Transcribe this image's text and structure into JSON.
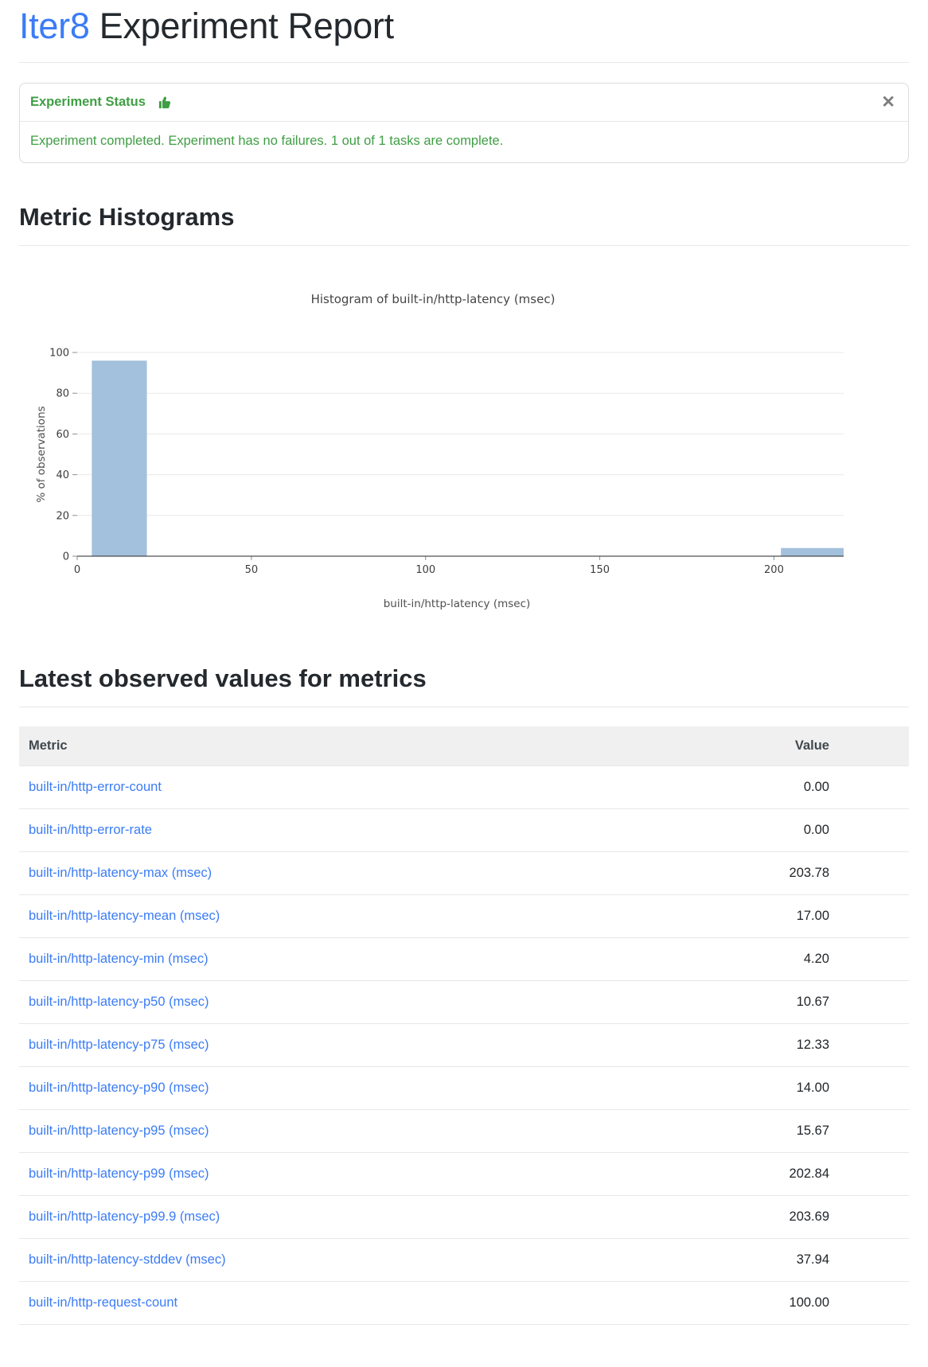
{
  "page": {
    "title_accent": "Iter8",
    "title_rest": " Experiment Report"
  },
  "colors": {
    "accent_blue": "#3b7cf6",
    "status_green": "#3f9e44",
    "bar_blue": "#a3c0dc",
    "table_header_bg": "#f0f0f1"
  },
  "status_card": {
    "header": "Experiment Status",
    "thumb_icon": "thumbs-up",
    "close_icon": "✕",
    "message": "Experiment completed. Experiment has no failures. 1 out of 1 tasks are complete."
  },
  "sections": {
    "histograms_heading": "Metric Histograms",
    "latest_values_heading": "Latest observed values for metrics"
  },
  "chart_data": {
    "type": "bar",
    "subtype": "histogram",
    "title": "Histogram of built-in/http-latency (msec)",
    "xlabel": "built-in/http-latency (msec)",
    "ylabel": "% of observations",
    "xlim": [
      0,
      220
    ],
    "ylim": [
      0,
      100
    ],
    "x_ticks": [
      0,
      50,
      100,
      150,
      200
    ],
    "y_ticks": [
      0,
      20,
      40,
      60,
      80,
      100
    ],
    "grid": "horizontal",
    "legend": "none",
    "bar_color": "#a3c0dc",
    "bins": [
      {
        "x0": 4.2,
        "x1": 20,
        "percent": 96
      },
      {
        "x0": 202,
        "x1": 220,
        "percent": 4
      }
    ]
  },
  "metrics_table": {
    "columns": [
      "Metric",
      "Value"
    ],
    "rows": [
      {
        "metric": "built-in/http-error-count",
        "value": "0.00"
      },
      {
        "metric": "built-in/http-error-rate",
        "value": "0.00"
      },
      {
        "metric": "built-in/http-latency-max (msec)",
        "value": "203.78"
      },
      {
        "metric": "built-in/http-latency-mean (msec)",
        "value": "17.00"
      },
      {
        "metric": "built-in/http-latency-min (msec)",
        "value": "4.20"
      },
      {
        "metric": "built-in/http-latency-p50 (msec)",
        "value": "10.67"
      },
      {
        "metric": "built-in/http-latency-p75 (msec)",
        "value": "12.33"
      },
      {
        "metric": "built-in/http-latency-p90 (msec)",
        "value": "14.00"
      },
      {
        "metric": "built-in/http-latency-p95 (msec)",
        "value": "15.67"
      },
      {
        "metric": "built-in/http-latency-p99 (msec)",
        "value": "202.84"
      },
      {
        "metric": "built-in/http-latency-p99.9 (msec)",
        "value": "203.69"
      },
      {
        "metric": "built-in/http-latency-stddev (msec)",
        "value": "37.94"
      },
      {
        "metric": "built-in/http-request-count",
        "value": "100.00"
      }
    ]
  }
}
